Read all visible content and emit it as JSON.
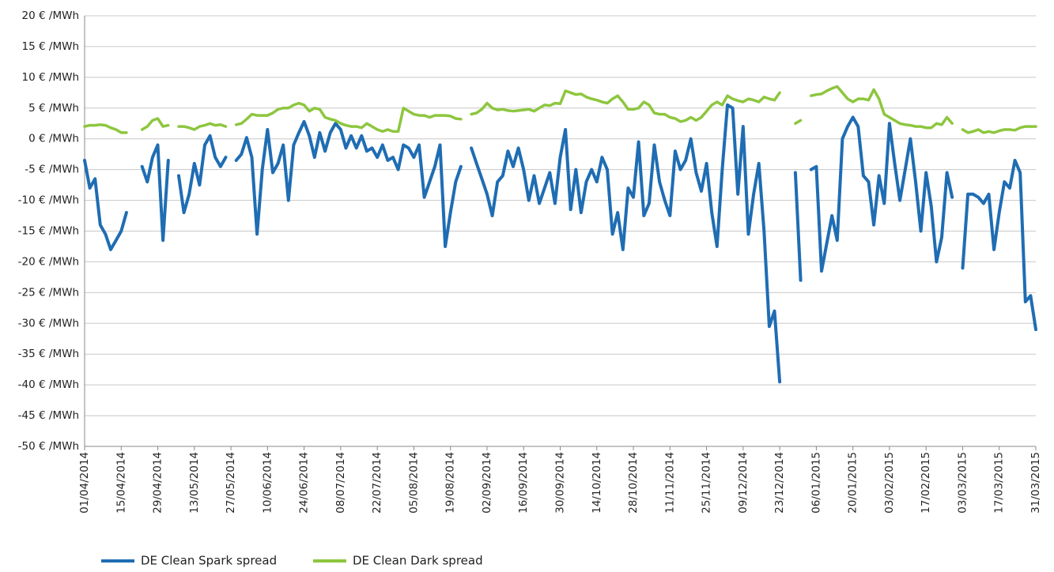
{
  "chart_data": {
    "type": "line",
    "categories": [
      "01/04/2014",
      null,
      null,
      null,
      null,
      null,
      null,
      "15/04/2014",
      null,
      null,
      null,
      null,
      null,
      null,
      "29/04/2014",
      null,
      null,
      null,
      null,
      null,
      null,
      "13/05/2014",
      null,
      null,
      null,
      null,
      null,
      null,
      "27/05/2014",
      null,
      null,
      null,
      null,
      null,
      null,
      "10/06/2014",
      null,
      null,
      null,
      null,
      null,
      null,
      "24/06/2014",
      null,
      null,
      null,
      null,
      null,
      null,
      "08/07/2014",
      null,
      null,
      null,
      null,
      null,
      null,
      "22/07/2014",
      null,
      null,
      null,
      null,
      null,
      null,
      "05/08/2014",
      null,
      null,
      null,
      null,
      null,
      null,
      "19/08/2014",
      null,
      null,
      null,
      null,
      null,
      null,
      "02/09/2014",
      null,
      null,
      null,
      null,
      null,
      null,
      "16/09/2014",
      null,
      null,
      null,
      null,
      null,
      null,
      "30/09/2014",
      null,
      null,
      null,
      null,
      null,
      null,
      "14/10/2014",
      null,
      null,
      null,
      null,
      null,
      null,
      "28/10/2014",
      null,
      null,
      null,
      null,
      null,
      null,
      "11/11/2014",
      null,
      null,
      null,
      null,
      null,
      null,
      "25/11/2014",
      null,
      null,
      null,
      null,
      null,
      null,
      "09/12/2014",
      null,
      null,
      null,
      null,
      null,
      null,
      "23/12/2014",
      null,
      null,
      null,
      null,
      null,
      null,
      "06/01/2015",
      null,
      null,
      null,
      null,
      null,
      null,
      "20/01/2015",
      null,
      null,
      null,
      null,
      null,
      null,
      "03/02/2015",
      null,
      null,
      null,
      null,
      null,
      null,
      "17/02/2015",
      null,
      null,
      null,
      null,
      null,
      null,
      "03/03/2015",
      null,
      null,
      null,
      null,
      null,
      null,
      "17/03/2015",
      null,
      null,
      null,
      null,
      null,
      null,
      "31/03/2015"
    ],
    "series": [
      {
        "name": "DE Clean Spark spread",
        "color": "#1f6db3",
        "values": [
          -3.5,
          -8,
          -6.5,
          -14,
          -15.5,
          -18,
          -16.5,
          -15,
          -12,
          null,
          null,
          -4.5,
          -7,
          -3,
          -1,
          -16.5,
          -3.5,
          null,
          -6,
          -12,
          -9,
          -4,
          -7.5,
          -1,
          0.5,
          -3,
          -4.5,
          -3,
          null,
          -3.5,
          -2.5,
          0.2,
          -3,
          -15.5,
          -5,
          1.5,
          -5.5,
          -4,
          -1,
          -10,
          -1,
          1,
          2.8,
          0.5,
          -3,
          1,
          -2,
          1,
          2.5,
          1.5,
          -1.5,
          0.5,
          -1.5,
          0.5,
          -2,
          -1.5,
          -3,
          -1,
          -3.5,
          -3,
          -5,
          -1,
          -1.5,
          -3,
          -1,
          -9.5,
          -7,
          -4.5,
          -1,
          -17.5,
          -12,
          -7,
          -4.5,
          null,
          -1.5,
          -4,
          -6.5,
          -9,
          -12.5,
          -7,
          -6,
          -2,
          -4.5,
          -1.5,
          -5,
          -10,
          -6,
          -10.5,
          -8,
          -5.5,
          -10.5,
          -3,
          1.5,
          -11.5,
          -5,
          -12,
          -7,
          -5,
          -7,
          -3,
          -5,
          -15.5,
          -12,
          -18,
          -8,
          -9.5,
          -0.5,
          -12.5,
          -10.5,
          -1,
          -7,
          -10,
          -12.5,
          -2,
          -5,
          -3.5,
          0,
          -5.5,
          -8.5,
          -4,
          -12,
          -17.5,
          -5,
          5.5,
          5,
          -9,
          2,
          -15.5,
          -9,
          -4,
          -15,
          -30.5,
          -28,
          -39.5,
          null,
          null,
          -5.5,
          -23,
          null,
          -5,
          -4.5,
          -21.5,
          -17,
          -12.5,
          -16.5,
          0,
          2,
          3.5,
          2,
          -6,
          -7,
          -14,
          -6,
          -10.5,
          2.5,
          -4,
          -10,
          -5,
          0,
          -7,
          -15,
          -5.5,
          -11,
          -20,
          -16,
          -5.5,
          -9.5,
          null,
          -21,
          -9,
          -9,
          -9.5,
          -10.5,
          -9,
          -18,
          -12,
          -7,
          -8,
          -3.5,
          -5.5,
          -26.5,
          -25.5,
          -31
        ]
      },
      {
        "name": "DE Clean Dark spread",
        "color": "#8dc63f",
        "values": [
          2,
          2.2,
          2.2,
          2.3,
          2.2,
          1.8,
          1.5,
          1,
          1,
          null,
          null,
          1.5,
          2,
          3,
          3.3,
          2,
          2.2,
          null,
          2,
          2,
          1.8,
          1.5,
          2,
          2.2,
          2.5,
          2.2,
          2.3,
          2,
          null,
          2.3,
          2.5,
          3.2,
          4,
          3.8,
          3.8,
          3.8,
          4.2,
          4.8,
          5,
          5,
          5.5,
          5.8,
          5.5,
          4.5,
          5,
          4.8,
          3.5,
          3.2,
          3,
          2.5,
          2.2,
          2,
          2,
          1.8,
          2.5,
          2,
          1.5,
          1.2,
          1.5,
          1.2,
          1.2,
          5,
          4.5,
          4,
          3.8,
          3.8,
          3.5,
          3.8,
          3.8,
          3.8,
          3.7,
          3.3,
          3.2,
          null,
          4,
          4.2,
          4.8,
          5.8,
          5,
          4.7,
          4.8,
          4.6,
          4.5,
          4.6,
          4.7,
          4.8,
          4.5,
          5,
          5.5,
          5.4,
          5.8,
          5.7,
          7.8,
          7.5,
          7.2,
          7.3,
          6.8,
          6.5,
          6.3,
          6,
          5.8,
          6.5,
          7,
          6,
          4.8,
          4.8,
          5,
          6,
          5.5,
          4.2,
          4,
          4,
          3.5,
          3.3,
          2.8,
          3,
          3.5,
          3,
          3.5,
          4.5,
          5.5,
          6,
          5.5,
          7,
          6.5,
          6.2,
          6,
          6.5,
          6.3,
          6,
          6.8,
          6.5,
          6.3,
          7.5,
          null,
          null,
          2.5,
          3,
          null,
          7,
          7.2,
          7.3,
          7.8,
          8.2,
          8.5,
          7.5,
          6.5,
          6,
          6.5,
          6.5,
          6.3,
          8,
          6.5,
          4,
          3.5,
          3,
          2.5,
          2.3,
          2.2,
          2,
          2,
          1.8,
          1.8,
          2.5,
          2.3,
          3.5,
          2.5,
          null,
          1.5,
          1,
          1.2,
          1.5,
          1,
          1.2,
          1,
          1.3,
          1.5,
          1.5,
          1.4,
          1.8,
          2,
          2,
          2
        ]
      }
    ],
    "ylim": [
      -50,
      20
    ],
    "yticks": [
      {
        "value": -50,
        "label": "-50 € /MWh"
      },
      {
        "value": -45,
        "label": "-45 € /MWh"
      },
      {
        "value": -40,
        "label": "-40 € /MWh"
      },
      {
        "value": -35,
        "label": "-35 € /MWh"
      },
      {
        "value": -30,
        "label": "-30 € /MWh"
      },
      {
        "value": -25,
        "label": "-25 € /MWh"
      },
      {
        "value": -20,
        "label": "-20 € /MWh"
      },
      {
        "value": -15,
        "label": "-15 € /MWh"
      },
      {
        "value": -10,
        "label": "-10 € /MWh"
      },
      {
        "value": -5,
        "label": "-5 € /MWh"
      },
      {
        "value": 0,
        "label": "0  € /MWh"
      },
      {
        "value": 5,
        "label": "5 € /MWh"
      },
      {
        "value": 10,
        "label": "10 € /MWh"
      },
      {
        "value": 15,
        "label": "15 € /MWh"
      },
      {
        "value": 20,
        "label": "20 € /MWh"
      }
    ],
    "grid": true,
    "legend": "bottom"
  }
}
